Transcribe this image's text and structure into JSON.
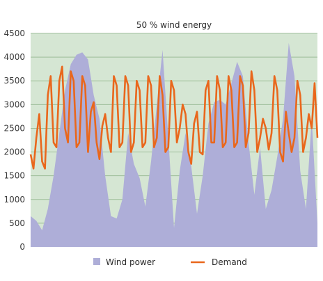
{
  "chart_data": {
    "type": "area",
    "title": "50 % wind energy",
    "xlabel": "",
    "ylabel": "",
    "ylim": [
      0,
      4500
    ],
    "yticks": [
      0,
      500,
      1000,
      1500,
      2000,
      2500,
      3000,
      3500,
      4000,
      4500
    ],
    "grid": true,
    "legend_position": "bottom",
    "colors": {
      "plot_background": "#d5e6d3",
      "gridline": "#9dbd98",
      "wind_power": "#aeaed8",
      "demand": "#e9671c"
    },
    "series": [
      {
        "name": "Wind power",
        "kind": "area",
        "x": [
          0,
          2,
          4,
          6,
          8,
          10,
          12,
          14,
          16,
          18,
          20,
          22,
          24,
          26,
          28,
          30,
          32,
          34,
          36,
          38,
          40,
          42,
          44,
          46,
          48,
          50,
          52,
          54,
          56,
          58,
          60,
          62,
          64,
          66,
          68,
          70,
          72,
          74,
          76,
          78,
          80,
          82,
          84,
          86,
          88,
          90,
          92,
          94,
          96,
          98,
          100
        ],
        "values": [
          650,
          550,
          350,
          800,
          1500,
          2400,
          3300,
          3850,
          4050,
          4100,
          3950,
          3200,
          2700,
          1500,
          650,
          600,
          1000,
          2400,
          1750,
          1450,
          850,
          1800,
          3000,
          4150,
          2300,
          400,
          1600,
          2400,
          1700,
          700,
          1500,
          2600,
          3050,
          3100,
          3000,
          3450,
          3900,
          3600,
          2200,
          1100,
          2100,
          800,
          1200,
          1900,
          2700,
          4300,
          3600,
          1600,
          800,
          2700,
          500
        ]
      },
      {
        "name": "Demand",
        "kind": "line",
        "x": [
          0,
          1,
          2,
          3,
          4,
          5,
          6,
          7,
          8,
          9,
          10,
          11,
          12,
          13,
          14,
          15,
          16,
          17,
          18,
          19,
          20,
          21,
          22,
          23,
          24,
          25,
          26,
          27,
          28,
          29,
          30,
          31,
          32,
          33,
          34,
          35,
          36,
          37,
          38,
          39,
          40,
          41,
          42,
          43,
          44,
          45,
          46,
          47,
          48,
          49,
          50,
          51,
          52,
          53,
          54,
          55,
          56,
          57,
          58,
          59,
          60,
          61,
          62,
          63,
          64,
          65,
          66,
          67,
          68,
          69,
          70,
          71,
          72,
          73,
          74,
          75,
          76,
          77,
          78,
          79,
          80,
          81,
          82,
          83,
          84,
          85,
          86,
          87,
          88,
          89,
          90,
          91,
          92,
          93,
          94,
          95,
          96,
          97,
          98,
          99,
          100
        ],
        "values": [
          1950,
          1650,
          2300,
          2800,
          1800,
          1650,
          3200,
          3600,
          2200,
          2100,
          3500,
          3800,
          2500,
          2200,
          3700,
          3500,
          2100,
          2200,
          3600,
          3400,
          2000,
          2850,
          3050,
          2200,
          1850,
          2550,
          2800,
          2300,
          2000,
          3600,
          3400,
          2100,
          2200,
          3600,
          3400,
          2000,
          2200,
          3500,
          3300,
          2100,
          2200,
          3600,
          3400,
          2100,
          2300,
          3600,
          3200,
          2000,
          2100,
          3500,
          3300,
          2200,
          2500,
          3000,
          2800,
          2000,
          1750,
          2600,
          2850,
          2000,
          1950,
          3300,
          3500,
          2200,
          2200,
          3600,
          3300,
          2100,
          2200,
          3600,
          3300,
          2100,
          2200,
          3600,
          3400,
          2100,
          2400,
          3700,
          3300,
          2000,
          2300,
          2700,
          2500,
          2050,
          2400,
          3600,
          3300,
          2000,
          1800,
          2850,
          2400,
          2000,
          2300,
          3500,
          3200,
          2000,
          2300,
          2800,
          2500,
          3450,
          2300
        ]
      }
    ]
  }
}
